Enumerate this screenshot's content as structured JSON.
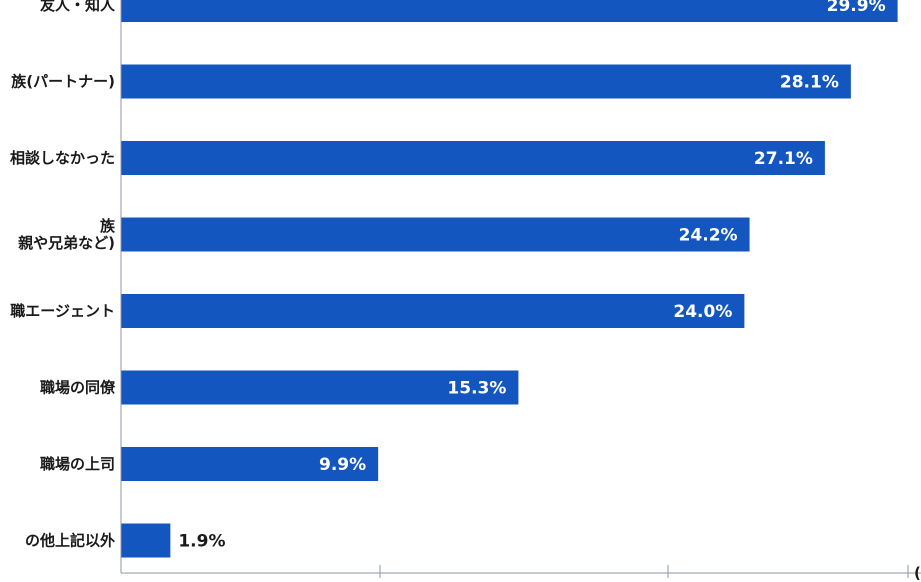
{
  "chart_data": {
    "type": "bar",
    "orientation": "horizontal",
    "title": "",
    "xlabel": "",
    "ylabel": "",
    "categories": [
      "友人・知人",
      "族(パートナー)",
      "相談しなかった",
      "族\n親や兄弟など)",
      "職エージェント",
      "職場の同僚",
      "職場の上司",
      "の他上記以外"
    ],
    "values": [
      29.9,
      28.1,
      27.1,
      24.2,
      24.0,
      15.3,
      9.9,
      1.9
    ],
    "value_labels": [
      "29.9%",
      "28.1%",
      "27.1%",
      "24.2%",
      "24.0%",
      "15.3%",
      "9.9%",
      "1.9%"
    ],
    "xlim": [
      0,
      30.8
    ],
    "grid": false,
    "bar_color": "#1456c0",
    "edge_label": "("
  }
}
